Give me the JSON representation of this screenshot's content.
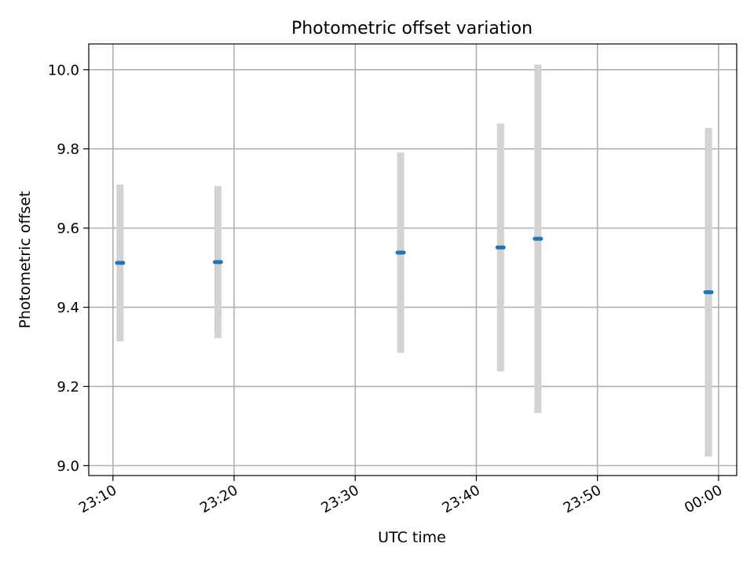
{
  "chart_data": {
    "type": "scatter",
    "title": "Photometric offset variation",
    "xlabel": "UTC time",
    "ylabel": "Photometric offset",
    "x_tick_labels": [
      "23:10",
      "23:20",
      "23:30",
      "23:40",
      "23:50",
      "00:00"
    ],
    "y_tick_labels": [
      "9.0",
      "9.2",
      "9.4",
      "9.6",
      "9.8",
      "10.0"
    ],
    "xlim": [
      "23:08",
      "00:01.5"
    ],
    "ylim": [
      8.975,
      10.065
    ],
    "grid": true,
    "errorbar_color": "#d3d3d3",
    "marker_color": "#1f77b4",
    "points": [
      {
        "time": "23:10:35",
        "value": 9.512,
        "error": 0.198
      },
      {
        "time": "23:18:40",
        "value": 9.514,
        "error": 0.192
      },
      {
        "time": "23:33:45",
        "value": 9.538,
        "error": 0.253
      },
      {
        "time": "23:42:00",
        "value": 9.551,
        "error": 0.313
      },
      {
        "time": "23:45:05",
        "value": 9.573,
        "error": 0.44
      },
      {
        "time": "23:59:10",
        "value": 9.438,
        "error": 0.415
      }
    ]
  }
}
